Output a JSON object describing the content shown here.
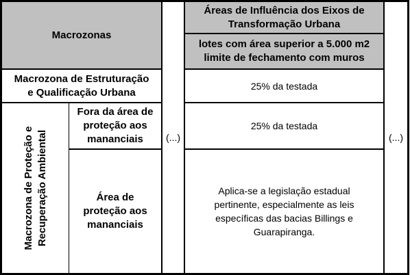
{
  "table": {
    "header": {
      "macrozonas": "Macrozonas",
      "eixos_title_line1": "Áreas de Influência dos Eixos de",
      "eixos_title_line2": "Transformação Urbana",
      "lotes_line1": "lotes com área superior a 5.000 m2",
      "lotes_line2": "limite de fechamento  com muros"
    },
    "rows": {
      "estruturacao": {
        "label_line1": "Macrozona de Estruturação",
        "label_line2": "e Qualificação Urbana",
        "value": "25% da testada"
      },
      "protecao": {
        "label_line1": "Macrozona de Proteção e",
        "label_line2": "Recuperação Ambiental",
        "fora": {
          "label_line1": "Fora da área de",
          "label_line2": "proteção aos",
          "label_line3": "mananciais",
          "value": "25% da testada"
        },
        "area": {
          "label_line1": "Área de",
          "label_line2": "proteção aos",
          "label_line3": "mananciais",
          "value_line1": "Aplica-se a legislação estadual",
          "value_line2": "pertinente, especialmente as leis",
          "value_line3": "específicas das bacias Billings e",
          "value_line4": "Guarapiranga."
        }
      }
    },
    "ellipsis_left": "(...)",
    "ellipsis_right": "(...)"
  }
}
